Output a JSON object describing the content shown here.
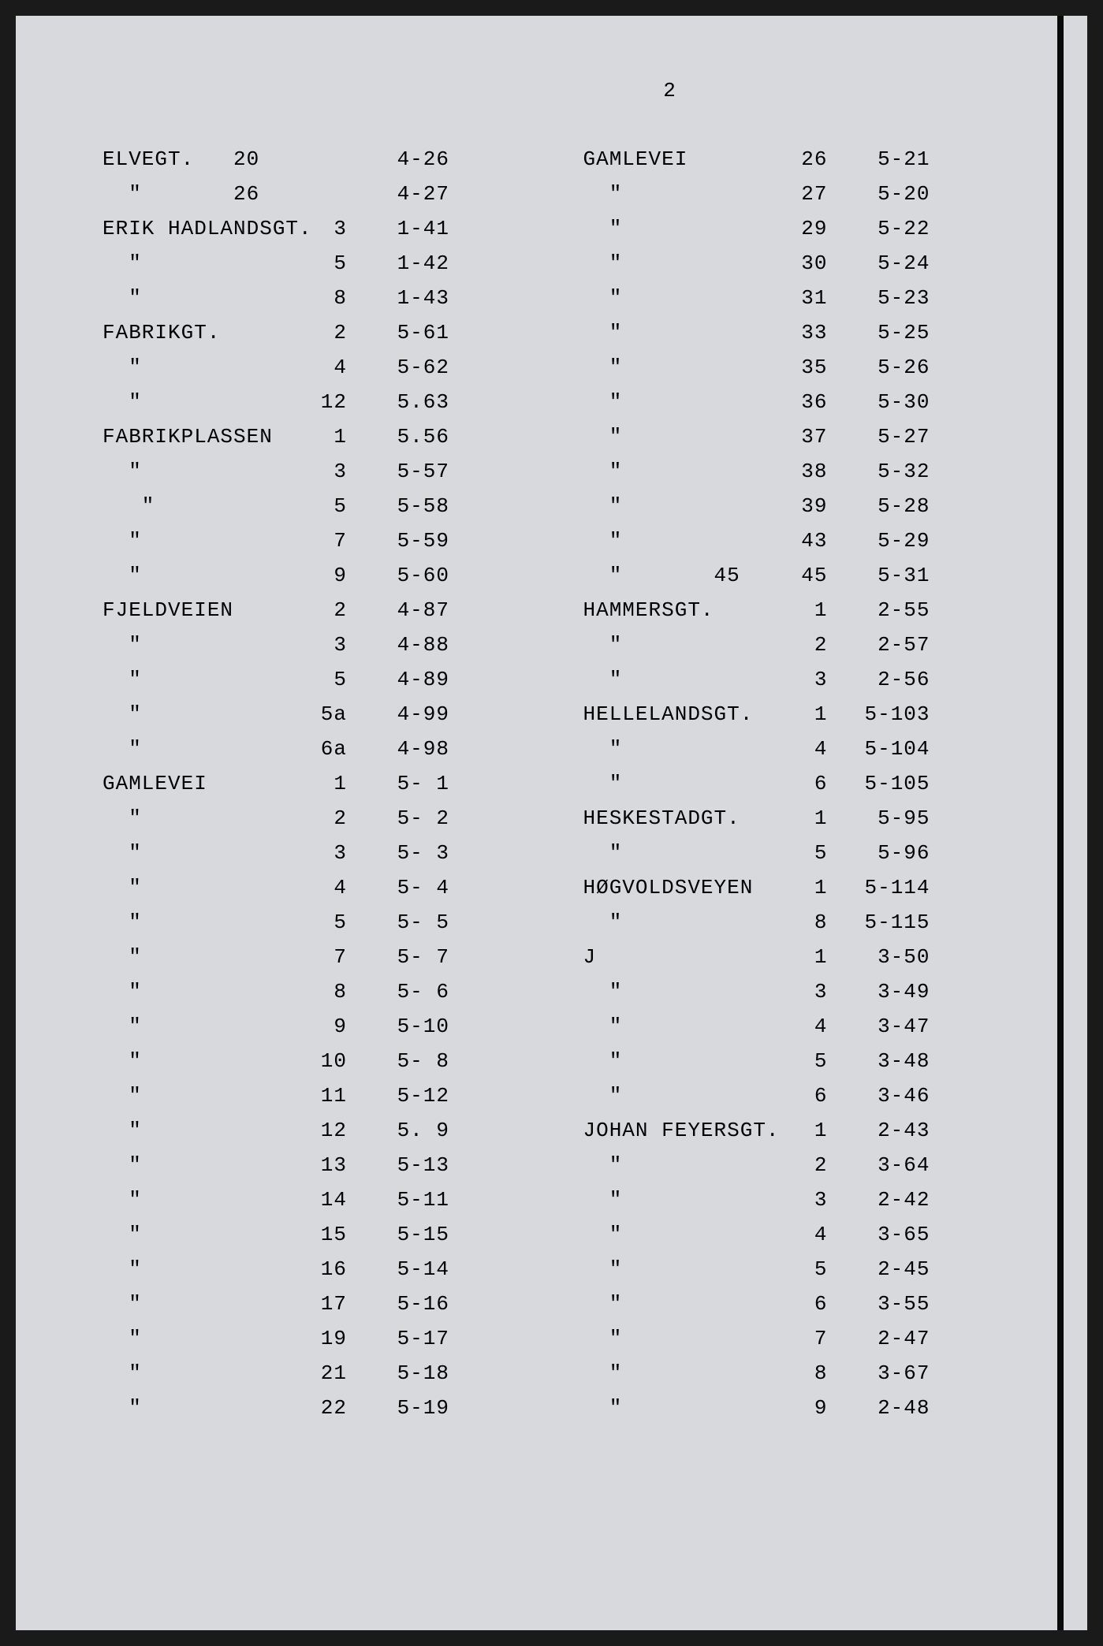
{
  "page_number": "2",
  "background_color": "#d8d9dd",
  "text_color": "#1a1a1a",
  "font_family": "Courier New",
  "font_size": 26,
  "line_height": 44,
  "left_column": [
    {
      "street": "ELVEGT.   20",
      "num": "",
      "code": "4-26"
    },
    {
      "street": "  \"       26",
      "num": "",
      "code": "4-27"
    },
    {
      "street": "ERIK HADLANDSGT.",
      "num": "3",
      "code": "1-41"
    },
    {
      "street": "  \"",
      "num": "5",
      "code": "1-42"
    },
    {
      "street": "  \"",
      "num": "8",
      "code": "1-43"
    },
    {
      "street": "FABRIKGT.",
      "num": "2",
      "code": "5-61"
    },
    {
      "street": "  \"",
      "num": "4",
      "code": "5-62"
    },
    {
      "street": "  \"",
      "num": "12",
      "code": "5.63"
    },
    {
      "street": "FABRIKPLASSEN",
      "num": "1",
      "code": "5.56"
    },
    {
      "street": "  \"",
      "num": "3",
      "code": "5-57"
    },
    {
      "street": "   \"",
      "num": "5",
      "code": "5-58"
    },
    {
      "street": "  \"",
      "num": "7",
      "code": "5-59"
    },
    {
      "street": "  \"",
      "num": "9",
      "code": "5-60"
    },
    {
      "street": "FJELDVEIEN",
      "num": "2",
      "code": "4-87"
    },
    {
      "street": "  \"",
      "num": "3",
      "code": "4-88"
    },
    {
      "street": "  \"",
      "num": "5",
      "code": "4-89"
    },
    {
      "street": "  \"",
      "num": "5a",
      "code": "4-99"
    },
    {
      "street": "  \"",
      "num": "6a",
      "code": "4-98"
    },
    {
      "street": "GAMLEVEI",
      "num": "1",
      "code": "5- 1"
    },
    {
      "street": "  \"",
      "num": "2",
      "code": "5- 2"
    },
    {
      "street": "  \"",
      "num": "3",
      "code": "5- 3"
    },
    {
      "street": "  \"",
      "num": "4",
      "code": "5- 4"
    },
    {
      "street": "  \"",
      "num": "5",
      "code": "5- 5"
    },
    {
      "street": "  \"",
      "num": "7",
      "code": "5- 7"
    },
    {
      "street": "  \"",
      "num": "8",
      "code": "5- 6"
    },
    {
      "street": "  \"",
      "num": "9",
      "code": "5-10"
    },
    {
      "street": "  \"",
      "num": "10",
      "code": "5- 8"
    },
    {
      "street": "  \"",
      "num": "11",
      "code": "5-12"
    },
    {
      "street": "  \"",
      "num": "12",
      "code": "5. 9"
    },
    {
      "street": "  \"",
      "num": "13",
      "code": "5-13"
    },
    {
      "street": "  \"",
      "num": "14",
      "code": "5-11"
    },
    {
      "street": "  \"",
      "num": "15",
      "code": "5-15"
    },
    {
      "street": "  \"",
      "num": "16",
      "code": "5-14"
    },
    {
      "street": "  \"",
      "num": "17",
      "code": "5-16"
    },
    {
      "street": "  \"",
      "num": "19",
      "code": "5-17"
    },
    {
      "street": "  \"",
      "num": "21",
      "code": "5-18"
    },
    {
      "street": "  \"",
      "num": "22",
      "code": "5-19"
    }
  ],
  "right_column": [
    {
      "street": "GAMLEVEI",
      "num": "26",
      "code": "5-21"
    },
    {
      "street": "  \"",
      "num": "27",
      "code": "5-20"
    },
    {
      "street": "  \"",
      "num": "29",
      "code": "5-22"
    },
    {
      "street": "  \"",
      "num": "30",
      "code": "5-24"
    },
    {
      "street": "  \"",
      "num": "31",
      "code": "5-23"
    },
    {
      "street": "  \"",
      "num": "33",
      "code": "5-25"
    },
    {
      "street": "  \"",
      "num": "35",
      "code": "5-26"
    },
    {
      "street": "  \"",
      "num": "36",
      "code": "5-30"
    },
    {
      "street": "  \"",
      "num": "37",
      "code": "5-27"
    },
    {
      "street": "  \"",
      "num": "38",
      "code": "5-32"
    },
    {
      "street": "  \"",
      "num": "39",
      "code": "5-28"
    },
    {
      "street": "  \"",
      "num": "43",
      "code": "5-29"
    },
    {
      "street": "  \"       45",
      "num": "45",
      "code": "5-31"
    },
    {
      "street": "HAMMERSGT.",
      "num": "1",
      "code": "2-55"
    },
    {
      "street": "  \"",
      "num": "2",
      "code": "2-57"
    },
    {
      "street": "  \"",
      "num": "3",
      "code": "2-56"
    },
    {
      "street": "HELLELANDSGT.",
      "num": "1",
      "code": "5-103"
    },
    {
      "street": "  \"",
      "num": "4",
      "code": "5-104"
    },
    {
      "street": "  \"",
      "num": "6",
      "code": "5-105"
    },
    {
      "street": "HESKESTADGT.",
      "num": "1",
      "code": "5-95"
    },
    {
      "street": "  \"",
      "num": "5",
      "code": "5-96"
    },
    {
      "street": "HØGVOLDSVEYEN",
      "num": "1",
      "code": "5-114"
    },
    {
      "street": "  \"",
      "num": "8",
      "code": "5-115"
    },
    {
      "street": "J",
      "num": "1",
      "code": "3-50"
    },
    {
      "street": "  \"",
      "num": "3",
      "code": "3-49"
    },
    {
      "street": "  \"",
      "num": "4",
      "code": "3-47"
    },
    {
      "street": "  \"",
      "num": "5",
      "code": "3-48"
    },
    {
      "street": "  \"",
      "num": "6",
      "code": "3-46"
    },
    {
      "street": "JOHAN FEYERSGT.",
      "num": "1",
      "code": "2-43"
    },
    {
      "street": "  \"",
      "num": "2",
      "code": "3-64"
    },
    {
      "street": "  \"",
      "num": "3",
      "code": "2-42"
    },
    {
      "street": "  \"",
      "num": "4",
      "code": "3-65"
    },
    {
      "street": "  \"",
      "num": "5",
      "code": "2-45"
    },
    {
      "street": "  \"",
      "num": "6",
      "code": "3-55"
    },
    {
      "street": "  \"",
      "num": "7",
      "code": "2-47"
    },
    {
      "street": "  \"",
      "num": "8",
      "code": "3-67"
    },
    {
      "street": "  \"",
      "num": "9",
      "code": "2-48"
    }
  ]
}
